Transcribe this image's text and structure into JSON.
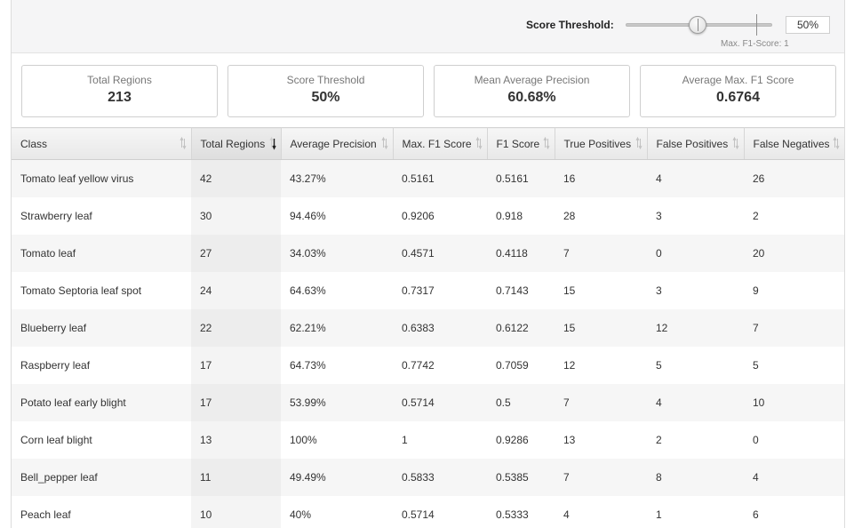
{
  "threshold": {
    "label": "Score Threshold:",
    "value": "50%",
    "slider_fraction": 0.5,
    "max_f1_fraction": 0.9,
    "max_f1_note": "Max. F1-Score: 1"
  },
  "cards": [
    {
      "label": "Total Regions",
      "value": "213"
    },
    {
      "label": "Score Threshold",
      "value": "50%"
    },
    {
      "label": "Mean Average Precision",
      "value": "60.68%"
    },
    {
      "label": "Average Max. F1 Score",
      "value": "0.6764"
    }
  ],
  "table": {
    "columns": [
      "Class",
      "Total Regions",
      "Average Precision",
      "Max. F1 Score",
      "F1 Score",
      "True Positives",
      "False Positives",
      "False Negatives"
    ],
    "sorted_column": "Total Regions",
    "sort_direction": "descending",
    "rows": [
      [
        "Tomato leaf yellow virus",
        "42",
        "43.27%",
        "0.5161",
        "0.5161",
        "16",
        "4",
        "26"
      ],
      [
        "Strawberry leaf",
        "30",
        "94.46%",
        "0.9206",
        "0.918",
        "28",
        "3",
        "2"
      ],
      [
        "Tomato leaf",
        "27",
        "34.03%",
        "0.4571",
        "0.4118",
        "7",
        "0",
        "20"
      ],
      [
        "Tomato Septoria leaf spot",
        "24",
        "64.63%",
        "0.7317",
        "0.7143",
        "15",
        "3",
        "9"
      ],
      [
        "Blueberry leaf",
        "22",
        "62.21%",
        "0.6383",
        "0.6122",
        "15",
        "12",
        "7"
      ],
      [
        "Raspberry leaf",
        "17",
        "64.73%",
        "0.7742",
        "0.7059",
        "12",
        "5",
        "5"
      ],
      [
        "Potato leaf early blight",
        "17",
        "53.99%",
        "0.5714",
        "0.5",
        "7",
        "4",
        "10"
      ],
      [
        "Corn leaf blight",
        "13",
        "100%",
        "1",
        "0.9286",
        "13",
        "2",
        "0"
      ],
      [
        "Bell_pepper leaf",
        "11",
        "49.49%",
        "0.5833",
        "0.5385",
        "7",
        "8",
        "4"
      ],
      [
        "Peach leaf",
        "10",
        "40%",
        "0.5714",
        "0.5333",
        "4",
        "1",
        "6"
      ]
    ]
  }
}
